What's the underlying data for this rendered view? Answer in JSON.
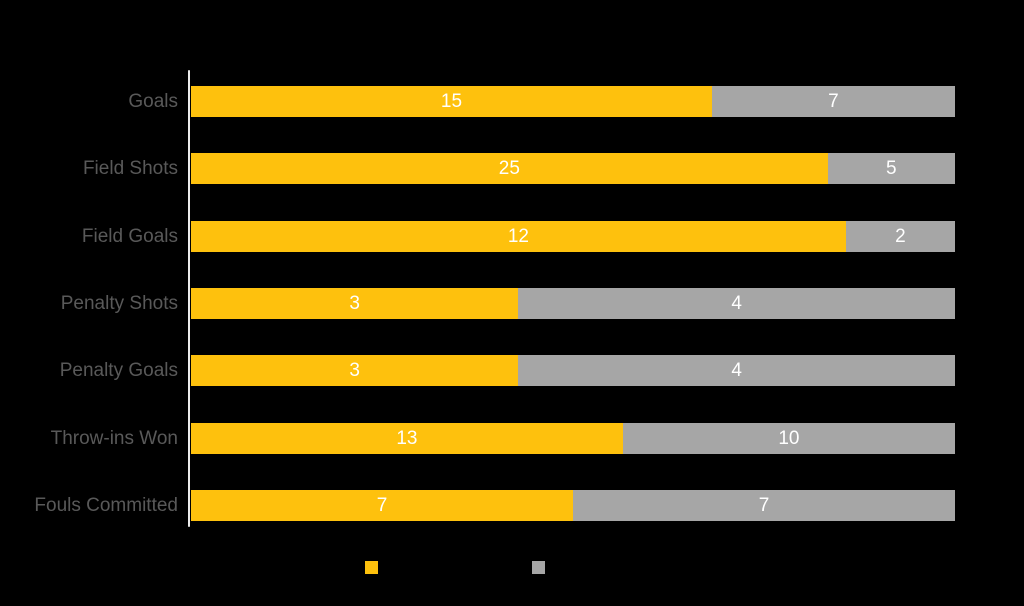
{
  "colors": {
    "background": "#000000",
    "series_yellow": "#fec10d",
    "series_gray": "#a6a6a6",
    "category_label": "#595959",
    "value_label": "#ffffff",
    "axis_line": "#ececec"
  },
  "chart_data": {
    "type": "bar",
    "subtype": "horizontal_100_percent_stacked",
    "title": "",
    "xlabel": "",
    "ylabel": "",
    "grid": false,
    "axis": {
      "y_axis_line_visible": true,
      "x_ticks_visible": false
    },
    "categories": [
      "Goals",
      "Field Shots",
      "Field Goals",
      "Penalty Shots",
      "Penalty Goals",
      "Throw-ins Won",
      "Fouls Committed"
    ],
    "series": [
      {
        "name": "",
        "color": "#fec10d",
        "values": [
          15,
          25,
          12,
          3,
          3,
          13,
          7
        ]
      },
      {
        "name": "",
        "color": "#a6a6a6",
        "values": [
          7,
          5,
          2,
          4,
          4,
          10,
          7
        ]
      }
    ],
    "value_labels": {
      "visible": true,
      "position": "center",
      "color": "#ffffff"
    },
    "legend": {
      "position": "bottom",
      "labels_visible": false,
      "swatch_colors": [
        "#fec10d",
        "#a6a6a6"
      ]
    }
  }
}
